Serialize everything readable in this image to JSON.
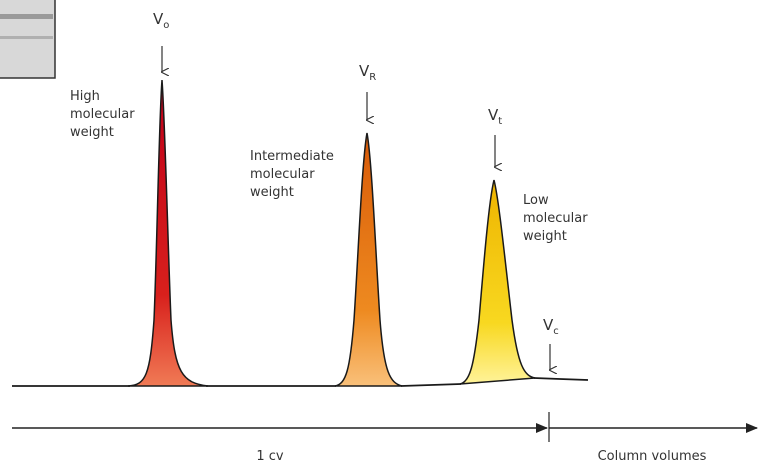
{
  "markers": [
    {
      "label": "V",
      "subscript": "o"
    },
    {
      "label": "V",
      "subscript": "R"
    },
    {
      "label": "V",
      "subscript": "t"
    },
    {
      "label": "V",
      "subscript": "c"
    }
  ],
  "peaks": [
    {
      "lines": [
        "High",
        "molecular",
        "weight"
      ]
    },
    {
      "lines": [
        "Intermediate",
        "molecular",
        "weight"
      ]
    },
    {
      "lines": [
        "Low",
        "molecular",
        "weight"
      ]
    }
  ],
  "axis": {
    "segment_label": "1 cv",
    "label": "Column volumes"
  }
}
